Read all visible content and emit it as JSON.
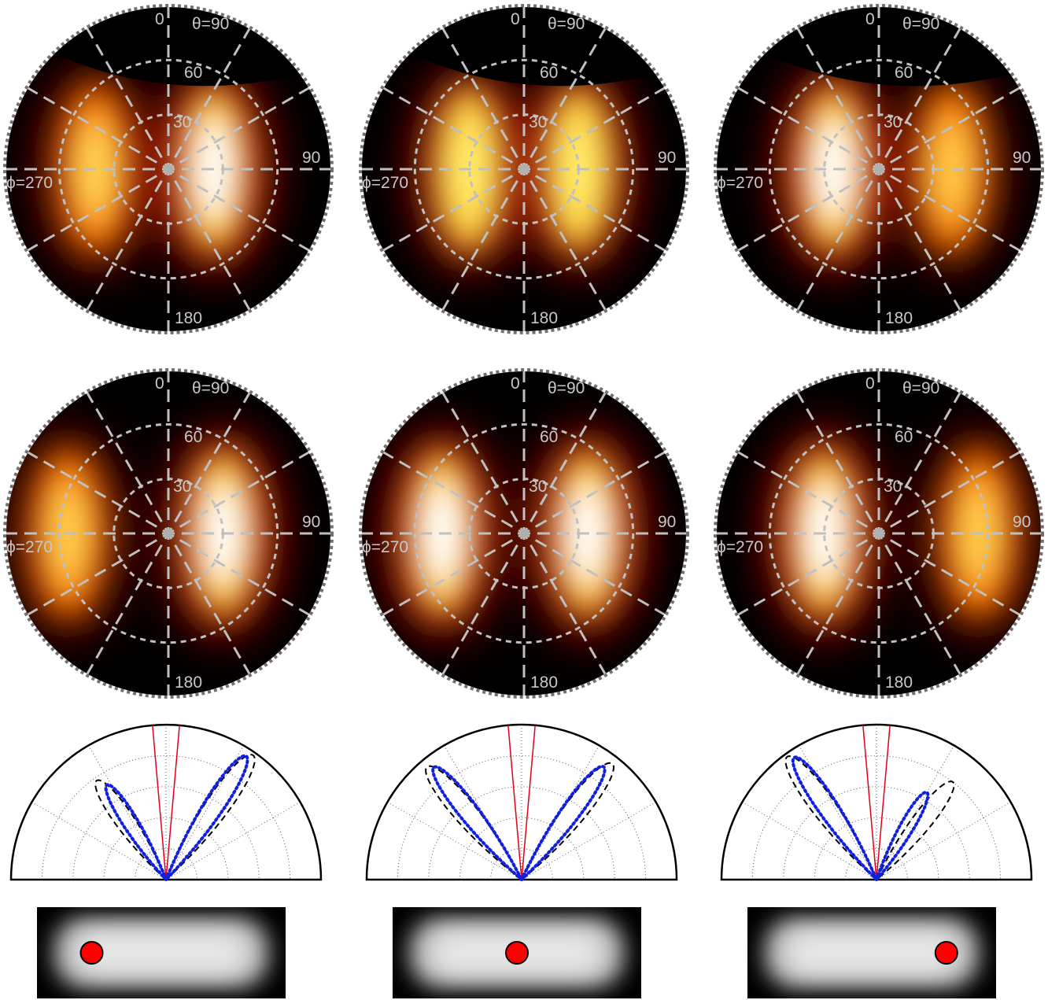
{
  "polar_labels": {
    "phi0": "0",
    "theta90": "θ=90",
    "theta60": "60",
    "theta30": "30",
    "phi90": "90",
    "phi270": "ϕ=270",
    "phi180": "180"
  },
  "columns": [
    {
      "id": "left",
      "measured": {
        "blobs": [
          {
            "azimuth_deg": 90,
            "theta_deg": 25,
            "intensity": 1.0
          },
          {
            "azimuth_deg": 270,
            "theta_deg": 40,
            "intensity": 0.75
          }
        ],
        "cutoff_theta_deg": 62
      },
      "simulated": {
        "blobs": [
          {
            "azimuth_deg": 90,
            "theta_deg": 30,
            "intensity": 1.0
          },
          {
            "azimuth_deg": 270,
            "theta_deg": 55,
            "intensity": 0.7
          }
        ]
      },
      "lobe_plot": {
        "dashed_lobes": [
          {
            "angle_deg": -35,
            "length": 0.78
          },
          {
            "angle_deg": 35,
            "length": 0.98
          }
        ],
        "dotted_lobes": [
          {
            "angle_deg": -32,
            "length": 0.72
          },
          {
            "angle_deg": 33,
            "length": 0.95
          }
        ]
      },
      "dot_position": 0.22
    },
    {
      "id": "center",
      "measured": {
        "blobs": [
          {
            "azimuth_deg": 90,
            "theta_deg": 30,
            "intensity": 0.9
          },
          {
            "azimuth_deg": 270,
            "theta_deg": 30,
            "intensity": 0.9
          }
        ],
        "cutoff_theta_deg": 62
      },
      "simulated": {
        "blobs": [
          {
            "azimuth_deg": 90,
            "theta_deg": 35,
            "intensity": 1.0
          },
          {
            "azimuth_deg": 270,
            "theta_deg": 45,
            "intensity": 1.0
          }
        ]
      },
      "lobe_plot": {
        "dashed_lobes": [
          {
            "angle_deg": -40,
            "length": 0.95
          },
          {
            "angle_deg": 38,
            "length": 0.95
          }
        ],
        "dotted_lobes": [
          {
            "angle_deg": -38,
            "length": 0.92
          },
          {
            "angle_deg": 36,
            "length": 0.9
          }
        ]
      },
      "dot_position": 0.5
    },
    {
      "id": "right",
      "measured": {
        "blobs": [
          {
            "azimuth_deg": 270,
            "theta_deg": 25,
            "intensity": 1.0
          },
          {
            "azimuth_deg": 90,
            "theta_deg": 40,
            "intensity": 0.65
          }
        ],
        "cutoff_theta_deg": 62
      },
      "simulated": {
        "blobs": [
          {
            "azimuth_deg": 270,
            "theta_deg": 30,
            "intensity": 1.0
          },
          {
            "azimuth_deg": 90,
            "theta_deg": 55,
            "intensity": 0.7
          }
        ]
      },
      "lobe_plot": {
        "dashed_lobes": [
          {
            "angle_deg": -36,
            "length": 0.98
          },
          {
            "angle_deg": 38,
            "length": 0.8
          }
        ],
        "dotted_lobes": [
          {
            "angle_deg": -34,
            "length": 0.95
          },
          {
            "angle_deg": 30,
            "length": 0.65
          }
        ]
      },
      "dot_position": 0.8
    }
  ],
  "colors": {
    "grid": "#c0c0c0",
    "red_line": "#e0001a",
    "dotted_data": "#1020e0",
    "dashed_model": "#000000",
    "dot": "#ff0000"
  }
}
